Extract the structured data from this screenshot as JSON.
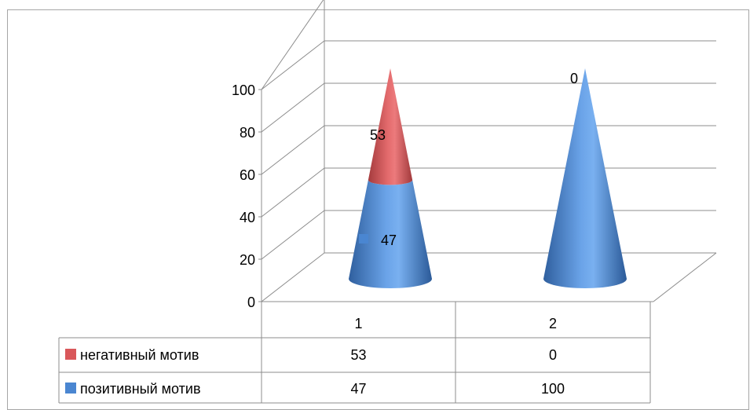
{
  "chart_data": {
    "type": "bar",
    "shape": "cone-3d-stacked",
    "categories": [
      "1",
      "2"
    ],
    "series": [
      {
        "name": "позитивный мотив",
        "values": [
          47,
          100
        ],
        "color": "#4a86d1"
      },
      {
        "name": "негативный мотив",
        "values": [
          53,
          0
        ],
        "color": "#d9575a"
      }
    ],
    "ylim": [
      0,
      100
    ],
    "y_ticks": [
      "0",
      "20",
      "40",
      "60",
      "80",
      "100"
    ],
    "data_labels": {
      "negative": [
        "53",
        "0"
      ],
      "positive": [
        "47"
      ]
    },
    "grid": true,
    "data_table": true,
    "legend": "data-table"
  },
  "colors": {
    "grid": "#8c8c8c",
    "positive": "#4a86d1",
    "negative": "#d9575a",
    "frame": "#a6a6a6"
  }
}
